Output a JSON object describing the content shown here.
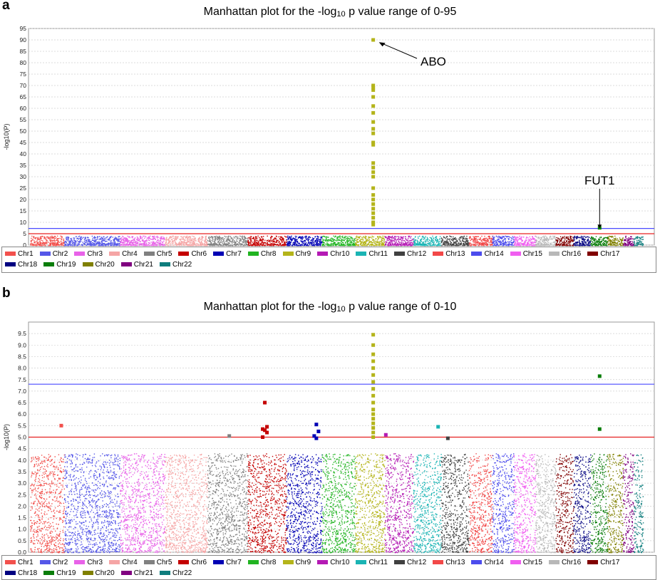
{
  "panels": [
    {
      "letter": "a",
      "title_pre": "Manhattan plot for the -log",
      "title_sub": "10",
      "title_post": " p value range of 0-95"
    },
    {
      "letter": "b",
      "title_pre": "Manhattan plot for the -log",
      "title_sub": "10",
      "title_post": " p value range of 0-10"
    }
  ],
  "ylabel": "-log10(P)",
  "annotations": {
    "abo": "ABO",
    "fut1": "FUT1"
  },
  "colors": {
    "Chr1": "#f2504c",
    "Chr2": "#5557e8",
    "Chr3": "#e862e8",
    "Chr4": "#f5a5a5",
    "Chr5": "#808080",
    "Chr6": "#c40000",
    "Chr7": "#0000b4",
    "Chr8": "#21b421",
    "Chr9": "#b4b41a",
    "Chr10": "#b41ab4",
    "Chr11": "#1ab4b4",
    "Chr12": "#404040",
    "Chr13": "#f24848",
    "Chr14": "#4c4ced",
    "Chr15": "#f05ef0",
    "Chr16": "#b8b8b8",
    "Chr17": "#800000",
    "Chr18": "#000080",
    "Chr19": "#0a7d0a",
    "Chr20": "#808000",
    "Chr21": "#800080",
    "Chr22": "#0e7d7d",
    "threshold_genome": "#4a4aff",
    "threshold_suggestive": "#e62020"
  },
  "legend": [
    "Chr1",
    "Chr2",
    "Chr3",
    "Chr4",
    "Chr5",
    "Chr6",
    "Chr7",
    "Chr8",
    "Chr9",
    "Chr10",
    "Chr11",
    "Chr12",
    "Chr13",
    "Chr14",
    "Chr15",
    "Chr16",
    "Chr17",
    "Chr18",
    "Chr19",
    "Chr20",
    "Chr21",
    "Chr22"
  ],
  "chart_data": [
    {
      "type": "scatter",
      "title": "Manhattan plot for the -log10 p value range of 0-95",
      "ylabel": "-log10(P)",
      "ylim": [
        0,
        95
      ],
      "yticks": [
        0,
        5,
        10,
        15,
        20,
        25,
        30,
        35,
        40,
        45,
        50,
        55,
        60,
        65,
        70,
        75,
        80,
        85,
        90,
        95
      ],
      "grid": true,
      "legend_position": "bottom",
      "thresholds": [
        7.3,
        5.0
      ],
      "chromosomes": [
        "Chr1",
        "Chr2",
        "Chr3",
        "Chr4",
        "Chr5",
        "Chr6",
        "Chr7",
        "Chr8",
        "Chr9",
        "Chr10",
        "Chr11",
        "Chr12",
        "Chr13",
        "Chr14",
        "Chr15",
        "Chr16",
        "Chr17",
        "Chr18",
        "Chr19",
        "Chr20",
        "Chr21",
        "Chr22"
      ],
      "highlight_points": [
        {
          "chr": "Chr9",
          "y": 90
        },
        {
          "chr": "Chr9",
          "y": 70
        },
        {
          "chr": "Chr9",
          "y": 69
        },
        {
          "chr": "Chr9",
          "y": 68
        },
        {
          "chr": "Chr9",
          "y": 65
        },
        {
          "chr": "Chr9",
          "y": 61
        },
        {
          "chr": "Chr9",
          "y": 58
        },
        {
          "chr": "Chr9",
          "y": 54
        },
        {
          "chr": "Chr9",
          "y": 51
        },
        {
          "chr": "Chr9",
          "y": 49
        },
        {
          "chr": "Chr9",
          "y": 45
        },
        {
          "chr": "Chr9",
          "y": 44
        },
        {
          "chr": "Chr9",
          "y": 36
        },
        {
          "chr": "Chr9",
          "y": 34
        },
        {
          "chr": "Chr9",
          "y": 32
        },
        {
          "chr": "Chr9",
          "y": 30
        },
        {
          "chr": "Chr9",
          "y": 25
        },
        {
          "chr": "Chr9",
          "y": 22
        },
        {
          "chr": "Chr9",
          "y": 20
        },
        {
          "chr": "Chr9",
          "y": 18
        },
        {
          "chr": "Chr9",
          "y": 16
        },
        {
          "chr": "Chr9",
          "y": 14
        },
        {
          "chr": "Chr9",
          "y": 12
        },
        {
          "chr": "Chr9",
          "y": 10
        },
        {
          "chr": "Chr9",
          "y": 9
        },
        {
          "chr": "Chr19",
          "y": 7.6
        }
      ],
      "annotations": [
        {
          "text": "ABO",
          "chr": "Chr9",
          "y": 90
        },
        {
          "text": "FUT1",
          "chr": "Chr19",
          "y": 7.6
        }
      ]
    },
    {
      "type": "scatter",
      "title": "Manhattan plot for the -log10 p value range of 0-10",
      "ylabel": "-log10(P)",
      "ylim": [
        0,
        10
      ],
      "yticks": [
        0,
        0.5,
        1.0,
        1.5,
        2.0,
        2.5,
        3.0,
        3.5,
        4.0,
        4.5,
        5.0,
        5.5,
        6.0,
        6.5,
        7.0,
        7.5,
        8.0,
        8.5,
        9.0,
        9.5
      ],
      "grid": true,
      "legend_position": "bottom",
      "thresholds": [
        7.3,
        5.0
      ],
      "chromosomes": [
        "Chr1",
        "Chr2",
        "Chr3",
        "Chr4",
        "Chr5",
        "Chr6",
        "Chr7",
        "Chr8",
        "Chr9",
        "Chr10",
        "Chr11",
        "Chr12",
        "Chr13",
        "Chr14",
        "Chr15",
        "Chr16",
        "Chr17",
        "Chr18",
        "Chr19",
        "Chr20",
        "Chr21",
        "Chr22"
      ],
      "highlight_points": [
        {
          "chr": "Chr1",
          "y": 5.5
        },
        {
          "chr": "Chr5",
          "y": 5.05
        },
        {
          "chr": "Chr6",
          "y": 6.5
        },
        {
          "chr": "Chr6",
          "y": 5.45
        },
        {
          "chr": "Chr6",
          "y": 5.35
        },
        {
          "chr": "Chr6",
          "y": 5.3
        },
        {
          "chr": "Chr6",
          "y": 5.2
        },
        {
          "chr": "Chr6",
          "y": 5.0
        },
        {
          "chr": "Chr7",
          "y": 5.55
        },
        {
          "chr": "Chr7",
          "y": 5.25
        },
        {
          "chr": "Chr7",
          "y": 5.05
        },
        {
          "chr": "Chr7",
          "y": 4.95
        },
        {
          "chr": "Chr9",
          "y": 9.45
        },
        {
          "chr": "Chr9",
          "y": 9.0
        },
        {
          "chr": "Chr9",
          "y": 8.6
        },
        {
          "chr": "Chr9",
          "y": 8.3
        },
        {
          "chr": "Chr9",
          "y": 8.0
        },
        {
          "chr": "Chr9",
          "y": 7.7
        },
        {
          "chr": "Chr9",
          "y": 7.4
        },
        {
          "chr": "Chr9",
          "y": 7.1
        },
        {
          "chr": "Chr9",
          "y": 6.8
        },
        {
          "chr": "Chr9",
          "y": 6.5
        },
        {
          "chr": "Chr9",
          "y": 6.2
        },
        {
          "chr": "Chr9",
          "y": 6.0
        },
        {
          "chr": "Chr9",
          "y": 5.8
        },
        {
          "chr": "Chr9",
          "y": 5.6
        },
        {
          "chr": "Chr9",
          "y": 5.4
        },
        {
          "chr": "Chr9",
          "y": 5.2
        },
        {
          "chr": "Chr9",
          "y": 5.0
        },
        {
          "chr": "Chr10",
          "y": 5.1
        },
        {
          "chr": "Chr11",
          "y": 5.45
        },
        {
          "chr": "Chr12",
          "y": 4.95
        },
        {
          "chr": "Chr19",
          "y": 7.65
        },
        {
          "chr": "Chr19",
          "y": 5.35
        }
      ]
    }
  ]
}
